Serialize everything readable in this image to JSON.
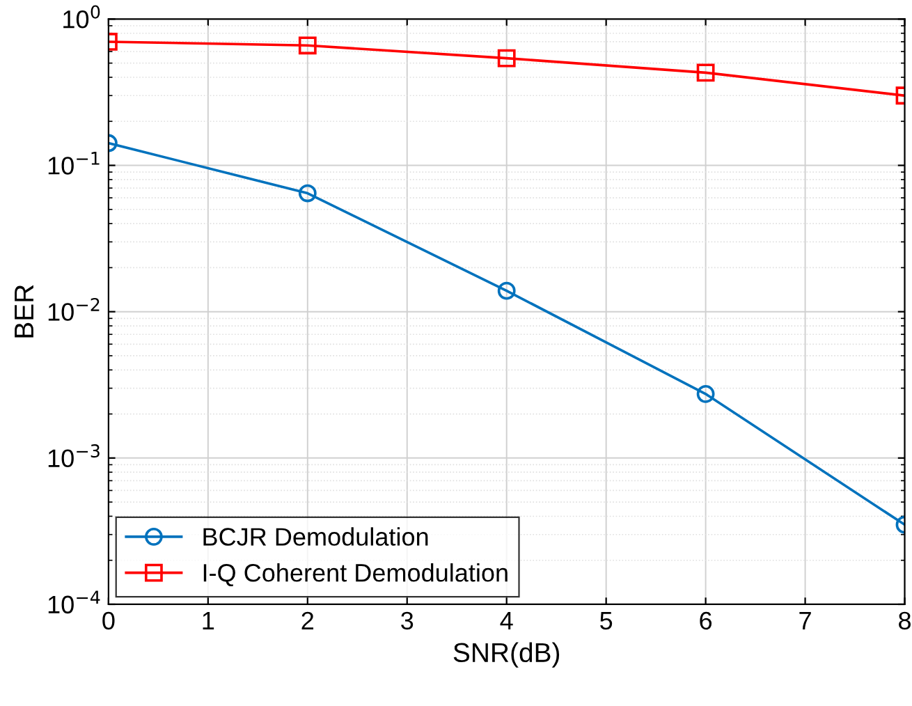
{
  "chart_data": {
    "type": "line",
    "xlabel": "SNR(dB)",
    "ylabel": "BER",
    "log": "y",
    "x": [
      0,
      2,
      4,
      6,
      8
    ],
    "xlim": [
      0,
      8
    ],
    "xticks": [
      0,
      1,
      2,
      3,
      4,
      5,
      6,
      7,
      8
    ],
    "ylim": [
      0.0001,
      1
    ],
    "yticks": [
      {
        "value": 0.0001,
        "label": "10$^{−4}$"
      },
      {
        "value": 0.001,
        "label": "10$^{−3}$"
      },
      {
        "value": 0.01,
        "label": "10$^{−2}$"
      },
      {
        "value": 0.1,
        "label": "10$^{−1}$"
      },
      {
        "value": 1,
        "label": "10$^{0}$"
      }
    ],
    "grid": true,
    "legend": "bottom left",
    "line_style": "solid",
    "series": [
      {
        "name": "BCJR Demodulation",
        "color": "#0072bd",
        "marker": "circle",
        "values": [
          0.142,
          0.0645,
          0.0139,
          0.00274,
          0.00035
        ]
      },
      {
        "name": "I-Q Coherent Demodulation",
        "color": "#ff0000",
        "marker": "square",
        "values": [
          0.7,
          0.66,
          0.54,
          0.43,
          0.3
        ]
      }
    ]
  }
}
